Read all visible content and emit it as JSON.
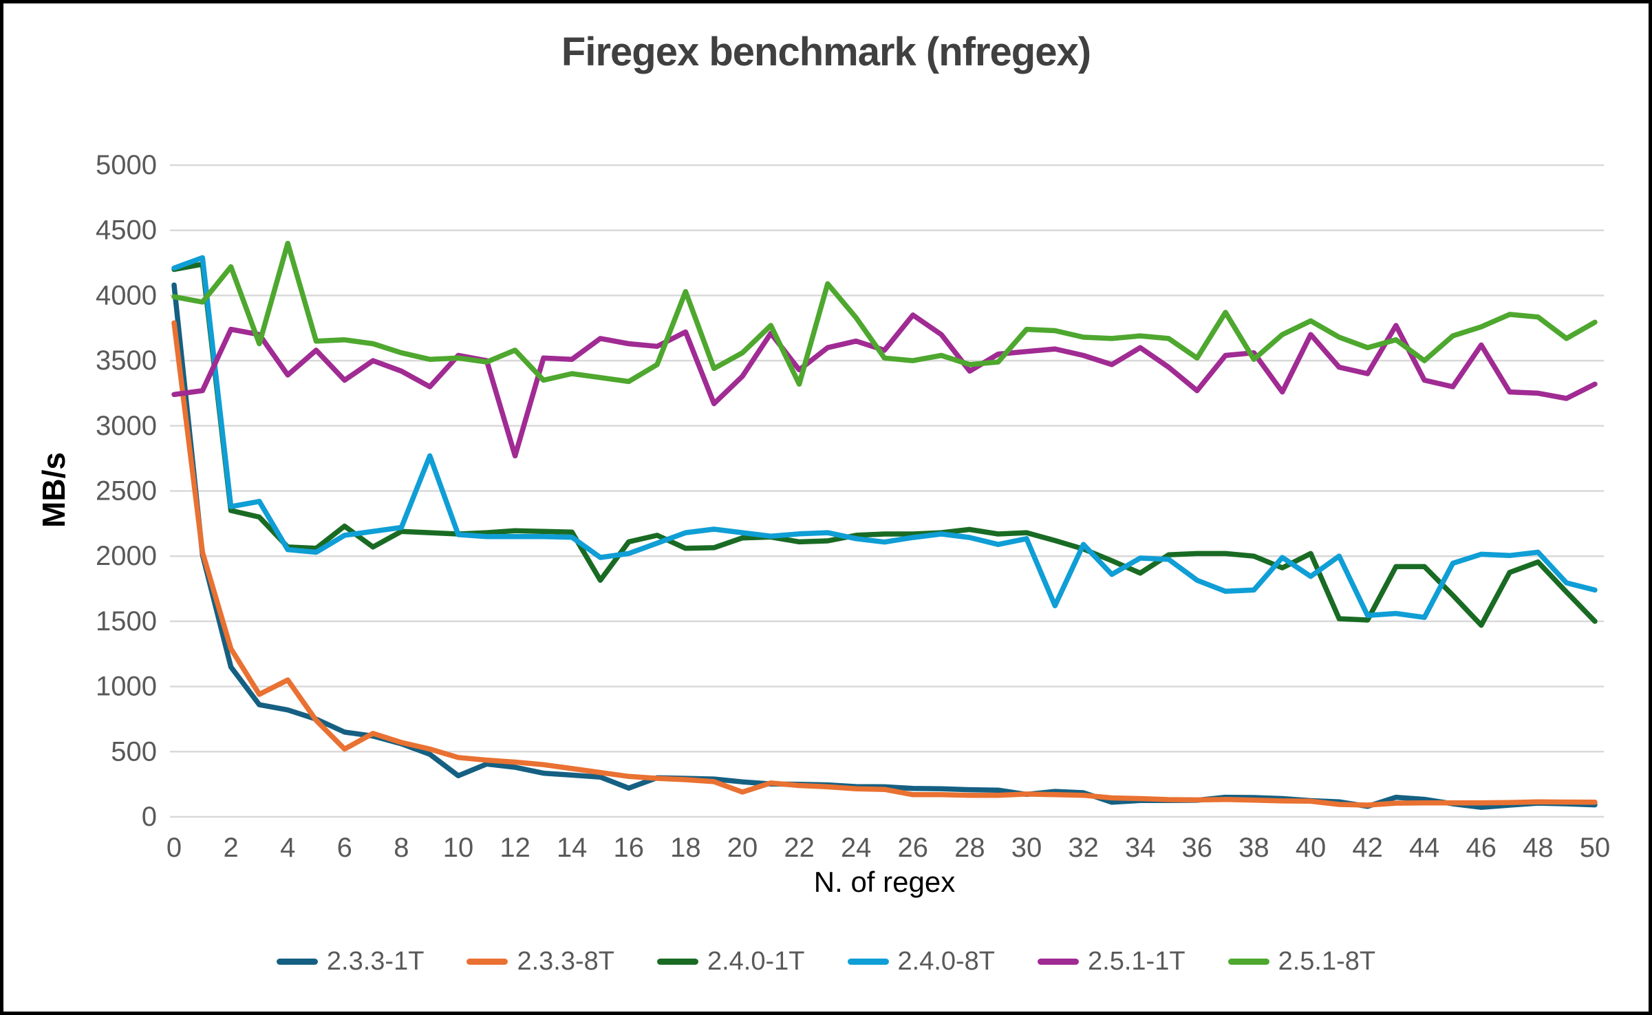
{
  "title": "Firegex benchmark (nfregex)",
  "y_axis": {
    "title": "MB/s"
  },
  "x_axis": {
    "title": "N. of regex"
  },
  "colors": {
    "grid": "#D9D9D9",
    "tick_label": "#595959",
    "title": "#404040"
  },
  "chart_data": {
    "type": "line",
    "title": "Firegex benchmark (nfregex)",
    "xlabel": "N. of regex",
    "ylabel": "MB/s",
    "grid": "horizontal",
    "legend_position": "bottom",
    "ylim": [
      0,
      5000
    ],
    "y_ticks": [
      0,
      500,
      1000,
      1500,
      2000,
      2500,
      3000,
      3500,
      4000,
      4500,
      5000
    ],
    "x_ticks": [
      0,
      2,
      4,
      6,
      8,
      10,
      12,
      14,
      16,
      18,
      20,
      22,
      24,
      26,
      28,
      30,
      32,
      34,
      36,
      38,
      40,
      42,
      44,
      46,
      48,
      50
    ],
    "x": [
      0,
      1,
      2,
      3,
      4,
      5,
      6,
      7,
      8,
      9,
      10,
      11,
      12,
      13,
      14,
      15,
      16,
      17,
      18,
      19,
      20,
      21,
      22,
      23,
      24,
      25,
      26,
      27,
      28,
      29,
      30,
      31,
      32,
      33,
      34,
      35,
      36,
      37,
      38,
      39,
      40,
      41,
      42,
      43,
      44,
      45,
      46,
      47,
      48,
      49,
      50
    ],
    "series": [
      {
        "name": "2.3.3-1T",
        "color": "#156082",
        "values": [
          4080,
          2010,
          1150,
          860,
          820,
          750,
          650,
          620,
          560,
          480,
          315,
          405,
          380,
          335,
          320,
          305,
          220,
          300,
          295,
          290,
          268,
          252,
          250,
          245,
          232,
          230,
          218,
          215,
          208,
          205,
          172,
          195,
          185,
          112,
          125,
          125,
          127,
          150,
          148,
          140,
          124,
          115,
          80,
          150,
          134,
          100,
          73,
          90,
          105,
          100,
          92
        ]
      },
      {
        "name": "2.3.3-8T",
        "color": "#E97132",
        "values": [
          3790,
          2030,
          1290,
          940,
          1050,
          740,
          520,
          640,
          570,
          520,
          455,
          435,
          420,
          400,
          370,
          340,
          310,
          295,
          285,
          270,
          190,
          260,
          240,
          230,
          215,
          210,
          170,
          170,
          165,
          165,
          175,
          170,
          165,
          145,
          140,
          132,
          130,
          133,
          128,
          122,
          120,
          95,
          90,
          105,
          107,
          107,
          107,
          110,
          115,
          113,
          112
        ]
      },
      {
        "name": "2.4.0-1T",
        "color": "#196B24",
        "values": [
          4200,
          4240,
          2350,
          2300,
          2070,
          2060,
          2230,
          2070,
          2190,
          2180,
          2170,
          2180,
          2195,
          2190,
          2185,
          1815,
          2110,
          2160,
          2060,
          2065,
          2140,
          2147,
          2110,
          2117,
          2160,
          2170,
          2170,
          2180,
          2205,
          2170,
          2180,
          2120,
          2055,
          1965,
          1870,
          2010,
          2020,
          2020,
          2000,
          1910,
          2020,
          1520,
          1510,
          1920,
          1920,
          1700,
          1470,
          1875,
          1955,
          1725,
          1500
        ]
      },
      {
        "name": "2.4.0-8T",
        "color": "#0F9ED5",
        "values": [
          4210,
          4290,
          2380,
          2420,
          2050,
          2030,
          2160,
          2190,
          2220,
          2770,
          2165,
          2150,
          2150,
          2150,
          2145,
          1990,
          2020,
          2100,
          2180,
          2207,
          2180,
          2153,
          2171,
          2180,
          2134,
          2108,
          2143,
          2170,
          2143,
          2090,
          2134,
          1620,
          2090,
          1860,
          1985,
          1975,
          1815,
          1730,
          1740,
          1990,
          1845,
          2000,
          1545,
          1560,
          1530,
          1945,
          2015,
          2005,
          2030,
          1795,
          1740
        ]
      },
      {
        "name": "2.5.1-1T",
        "color": "#A02B93",
        "values": [
          3240,
          3270,
          3740,
          3700,
          3390,
          3580,
          3350,
          3500,
          3420,
          3300,
          3540,
          3500,
          2770,
          3520,
          3510,
          3670,
          3630,
          3610,
          3720,
          3170,
          3380,
          3710,
          3430,
          3600,
          3650,
          3580,
          3850,
          3700,
          3420,
          3550,
          3570,
          3590,
          3540,
          3470,
          3600,
          3450,
          3270,
          3540,
          3560,
          3260,
          3700,
          3450,
          3400,
          3770,
          3350,
          3300,
          3620,
          3260,
          3250,
          3210,
          3320
        ]
      },
      {
        "name": "2.5.1-8T",
        "color": "#4EA72E",
        "values": [
          3990,
          3950,
          4220,
          3630,
          4400,
          3650,
          3660,
          3630,
          3560,
          3510,
          3520,
          3490,
          3580,
          3350,
          3400,
          3370,
          3340,
          3470,
          4030,
          3440,
          3560,
          3770,
          3320,
          4090,
          3830,
          3520,
          3500,
          3540,
          3470,
          3490,
          3740,
          3730,
          3680,
          3670,
          3690,
          3670,
          3520,
          3870,
          3510,
          3700,
          3805,
          3680,
          3600,
          3660,
          3500,
          3690,
          3760,
          3855,
          3835,
          3670,
          3795
        ]
      }
    ]
  }
}
